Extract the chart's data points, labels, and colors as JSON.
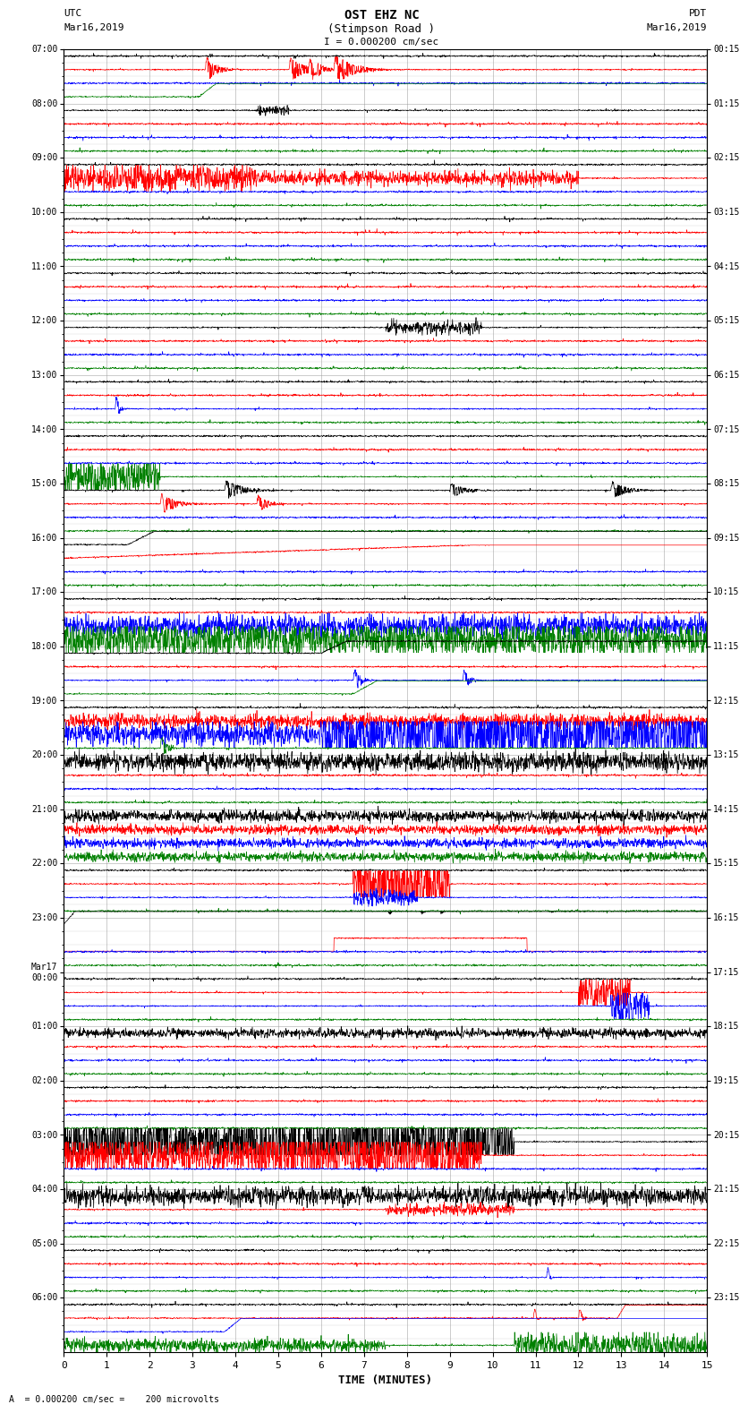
{
  "title_line1": "OST EHZ NC",
  "title_line2": "(Stimpson Road )",
  "scale_label": "I = 0.000200 cm/sec",
  "left_header": "UTC",
  "left_date": "Mar16,2019",
  "right_header": "PDT",
  "right_date": "Mar16,2019",
  "bottom_label": "A  = 0.000200 cm/sec =    200 microvolts",
  "xlabel": "TIME (MINUTES)",
  "utc_times": [
    "07:00",
    "08:00",
    "09:00",
    "10:00",
    "11:00",
    "12:00",
    "13:00",
    "14:00",
    "15:00",
    "16:00",
    "17:00",
    "18:00",
    "19:00",
    "20:00",
    "21:00",
    "22:00",
    "23:00",
    "Mar17\n00:00",
    "01:00",
    "02:00",
    "03:00",
    "04:00",
    "05:00",
    "06:00"
  ],
  "pdt_times": [
    "00:15",
    "01:15",
    "02:15",
    "03:15",
    "04:15",
    "05:15",
    "06:15",
    "07:15",
    "08:15",
    "09:15",
    "10:15",
    "11:15",
    "12:15",
    "13:15",
    "14:15",
    "15:15",
    "16:15",
    "17:15",
    "18:15",
    "19:15",
    "20:15",
    "21:15",
    "22:15",
    "23:15"
  ],
  "n_traces": 96,
  "n_rows": 24,
  "traces_per_row": 4,
  "minutes_per_trace": 15,
  "colors": [
    "black",
    "red",
    "blue",
    "green"
  ],
  "bg_color": "#ffffff",
  "grid_color": "#999999",
  "trace_lw": 0.5,
  "base_noise": 0.04,
  "sample_rate": 2000
}
